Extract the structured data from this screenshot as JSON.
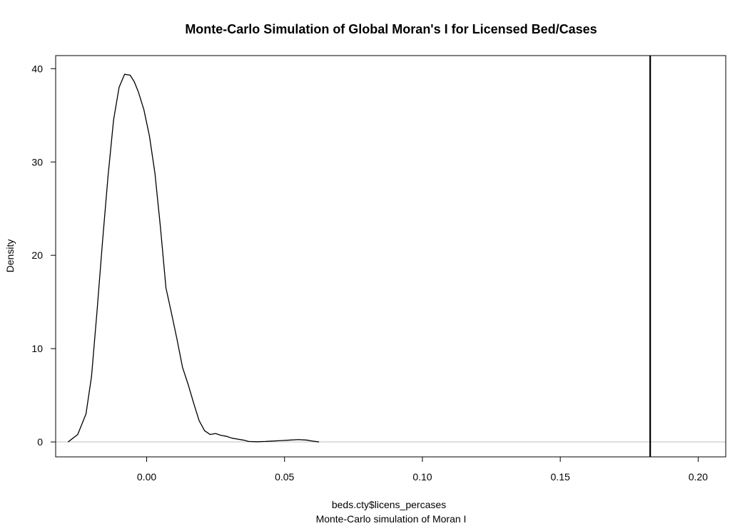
{
  "chart_data": {
    "type": "line",
    "title": "Monte-Carlo Simulation of Global Moran's I for Licensed Bed/Cases",
    "xlabel": "beds.cty$licens_percases",
    "subtitle": "Monte-Carlo simulation of Moran I",
    "ylabel": "Density",
    "xlim": [
      -0.033,
      0.21
    ],
    "ylim": [
      -1.6,
      41.4
    ],
    "x_ticks": [
      {
        "value": 0.0,
        "label": "0.00"
      },
      {
        "value": 0.05,
        "label": "0.05"
      },
      {
        "value": 0.1,
        "label": "0.10"
      },
      {
        "value": 0.15,
        "label": "0.15"
      },
      {
        "value": 0.2,
        "label": "0.20"
      }
    ],
    "y_ticks": [
      {
        "value": 0,
        "label": "0"
      },
      {
        "value": 10,
        "label": "10"
      },
      {
        "value": 20,
        "label": "20"
      },
      {
        "value": 30,
        "label": "30"
      },
      {
        "value": 40,
        "label": "40"
      }
    ],
    "zero_line": {
      "y": 0,
      "color": "#bebebe"
    },
    "observed_line": {
      "x": 0.1826,
      "color": "#000000"
    },
    "series": [
      {
        "color": "#000000",
        "x": [
          -0.0285,
          -0.025,
          -0.022,
          -0.02,
          -0.018,
          -0.016,
          -0.014,
          -0.012,
          -0.01,
          -0.008,
          -0.006,
          -0.0045,
          -0.003,
          -0.001,
          0.001,
          0.003,
          0.005,
          0.007,
          0.009,
          0.011,
          0.013,
          0.015,
          0.017,
          0.019,
          0.021,
          0.023,
          0.025,
          0.027,
          0.029,
          0.031,
          0.033,
          0.035,
          0.037,
          0.04,
          0.043,
          0.046,
          0.049,
          0.052,
          0.055,
          0.058,
          0.06,
          0.0625
        ],
        "y": [
          0.0,
          0.8,
          3.0,
          7.0,
          14.0,
          21.5,
          28.5,
          34.5,
          38.0,
          39.4,
          39.3,
          38.6,
          37.5,
          35.6,
          32.8,
          28.8,
          23.0,
          16.5,
          13.8,
          11.0,
          8.0,
          6.2,
          4.2,
          2.3,
          1.2,
          0.8,
          0.9,
          0.7,
          0.6,
          0.4,
          0.3,
          0.2,
          0.05,
          0.02,
          0.05,
          0.1,
          0.15,
          0.2,
          0.25,
          0.2,
          0.1,
          0.0
        ]
      }
    ]
  }
}
